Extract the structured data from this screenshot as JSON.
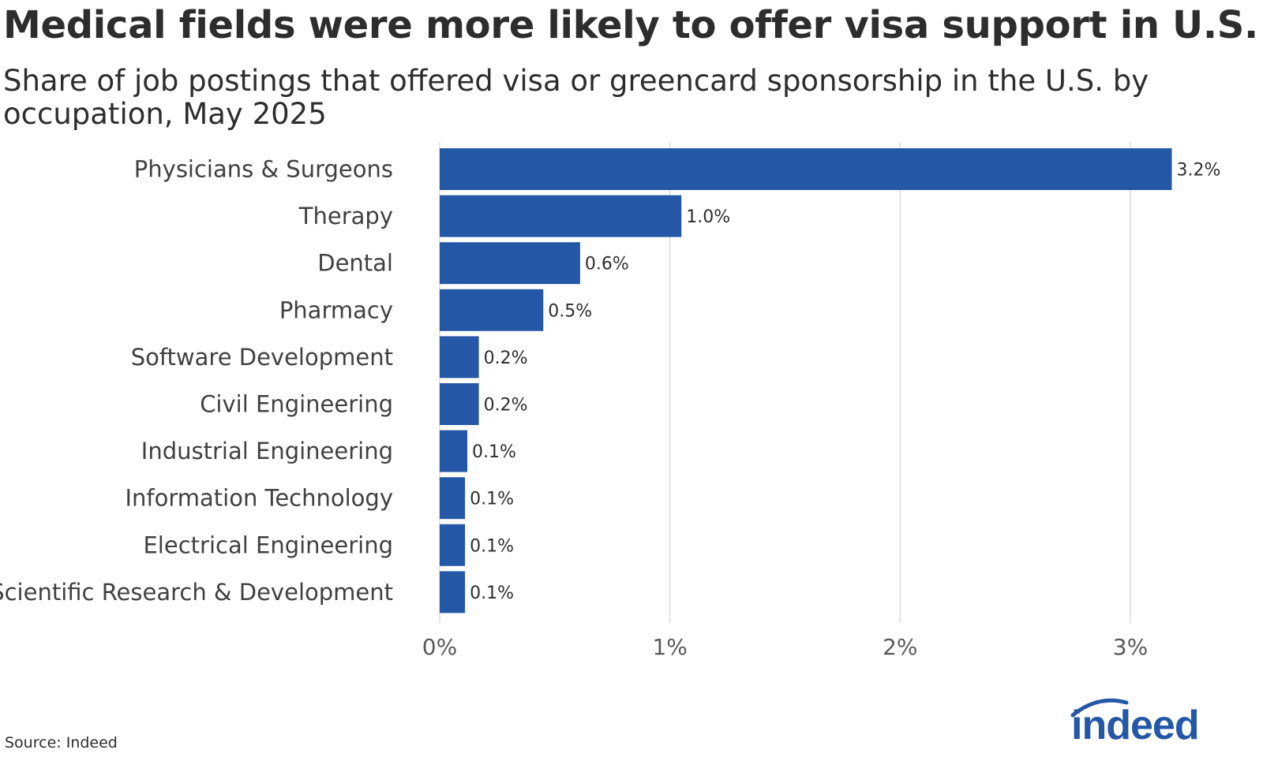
{
  "title": "Medical fields were more likely to offer visa support in U.S.",
  "subtitle": "Share of job postings that offered visa or greencard sponsorship in the U.S. by occupation, May 2025",
  "source": "Source: Indeed",
  "logo_text": "indeed",
  "colors": {
    "bar": "#2557a7",
    "grid": "#dcdcdc",
    "text": "#2d2d2d",
    "logo": "#2557a7"
  },
  "chart_data": {
    "type": "bar",
    "orientation": "horizontal",
    "categories": [
      "Physicians & Surgeons",
      "Therapy",
      "Dental",
      "Pharmacy",
      "Software Development",
      "Civil Engineering",
      "Industrial Engineering",
      "Information Technology",
      "Electrical Engineering",
      "Scientific Research & Development"
    ],
    "values": [
      3.18,
      1.05,
      0.61,
      0.45,
      0.17,
      0.17,
      0.12,
      0.11,
      0.11,
      0.11
    ],
    "value_labels": [
      "3.2%",
      "1.0%",
      "0.6%",
      "0.5%",
      "0.2%",
      "0.2%",
      "0.1%",
      "0.1%",
      "0.1%",
      "0.1%"
    ],
    "xlim": [
      0,
      3.3
    ],
    "xticks": [
      0,
      1,
      2,
      3
    ],
    "xtick_labels": [
      "0%",
      "1%",
      "2%",
      "3%"
    ],
    "xlabel": "",
    "ylabel": "",
    "grid": true
  }
}
